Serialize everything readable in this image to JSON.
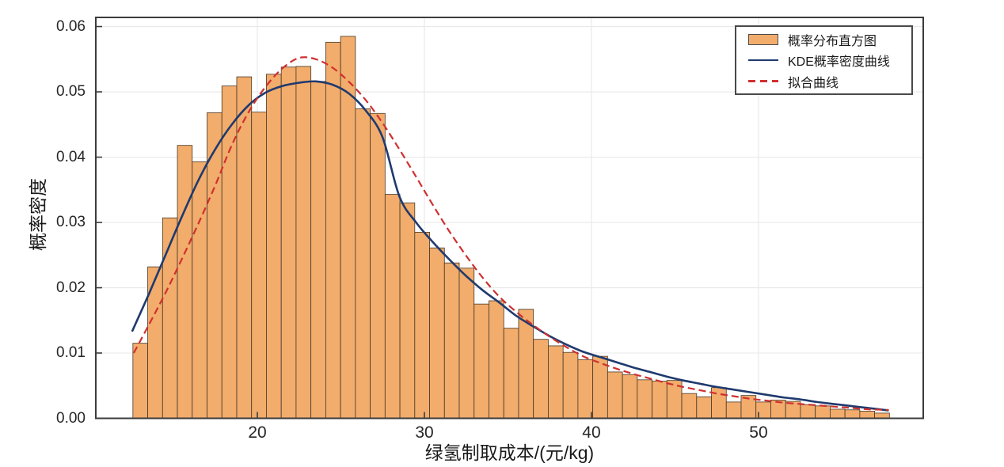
{
  "figure": {
    "xlabel": "绿氢制取成本/(元/kg)",
    "ylabel": "概率密度"
  },
  "legend": {
    "histogram_label": "概率分布直方图",
    "kde_label": "KDE概率密度曲线",
    "fit_label": "拟合曲线"
  },
  "colors": {
    "bar_fill": "#F2AC6B",
    "bar_edge": "#45392a",
    "kde_line": "#1F3A6E",
    "fit_line": "#CF3030",
    "grid": "#E8E8E8",
    "spine": "#3C3C3C",
    "tick_text": "#262626"
  },
  "chart_data": {
    "type": "bar",
    "subtype": "histogram-with-density-curves",
    "title": "",
    "xlabel": "绿氢制取成本/(元/kg)",
    "ylabel": "概率密度",
    "xlim": [
      10.33,
      59.86
    ],
    "ylim": [
      0,
      0.0614
    ],
    "x_ticks": [
      20,
      30,
      40,
      50
    ],
    "x_tick_labels": [
      "20",
      "30",
      "40",
      "50"
    ],
    "y_ticks": [
      0,
      0.01,
      0.02,
      0.03,
      0.04,
      0.05,
      0.06
    ],
    "y_tick_labels": [
      "0.00",
      "0.01",
      "0.02",
      "0.03",
      "0.04",
      "0.05",
      "0.06"
    ],
    "grid": true,
    "legend_position": "upper right",
    "histogram": {
      "label": "概率分布直方图",
      "bin_start": 12.55,
      "bin_width": 0.888,
      "densities": [
        0.0115,
        0.0232,
        0.0307,
        0.0418,
        0.0393,
        0.0468,
        0.0509,
        0.0523,
        0.0469,
        0.0527,
        0.0538,
        0.0539,
        0.0516,
        0.0576,
        0.0585,
        0.0474,
        0.0467,
        0.0343,
        0.033,
        0.0285,
        0.0261,
        0.0238,
        0.023,
        0.0175,
        0.018,
        0.0138,
        0.0167,
        0.0121,
        0.0111,
        0.0101,
        0.009,
        0.0095,
        0.0071,
        0.0067,
        0.0059,
        0.0057,
        0.0058,
        0.0038,
        0.0033,
        0.0047,
        0.0025,
        0.0035,
        0.0025,
        0.0028,
        0.0026,
        0.0021,
        0.0019,
        0.0014,
        0.0013,
        0.0011,
        0.0008
      ]
    },
    "series": [
      {
        "name": "KDE概率密度曲线",
        "style": "solid",
        "color": "#1F3A6E",
        "width": 2.6,
        "x": [
          12.5,
          13.5,
          14.5,
          15.5,
          16.5,
          17.5,
          18.5,
          19.5,
          20.5,
          21.5,
          22.5,
          23.5,
          24.5,
          25.5,
          26.5,
          27.5,
          28.5,
          29.5,
          30.5,
          31.5,
          32.5,
          33.5,
          34.5,
          35.5,
          36.5,
          37.5,
          38.5,
          39.5,
          40.5,
          41.5,
          42.5,
          43.5,
          44.5,
          45.5,
          46.5,
          47.5,
          48.5,
          49.5,
          50.5,
          51.5,
          52.5,
          53.5,
          54.5,
          55.5,
          56.5,
          57.5,
          57.8
        ],
        "y": [
          0.0133,
          0.019,
          0.025,
          0.031,
          0.0366,
          0.0413,
          0.0451,
          0.048,
          0.0499,
          0.0509,
          0.0514,
          0.0516,
          0.0511,
          0.0497,
          0.0471,
          0.043,
          0.034,
          0.03,
          0.027,
          0.0243,
          0.0218,
          0.0196,
          0.0177,
          0.0157,
          0.0141,
          0.0126,
          0.0113,
          0.0102,
          0.0094,
          0.0086,
          0.0078,
          0.0071,
          0.0064,
          0.0058,
          0.0053,
          0.0048,
          0.0044,
          0.004,
          0.0036,
          0.0032,
          0.0029,
          0.0025,
          0.0022,
          0.0019,
          0.0016,
          0.0013,
          0.0012
        ]
      },
      {
        "name": "拟合曲线",
        "style": "dashed",
        "color": "#CF3030",
        "width": 2.2,
        "dash": "9 5",
        "x": [
          12.6,
          13.5,
          14.5,
          15.5,
          16.5,
          17.5,
          18.5,
          19.5,
          20.5,
          21.5,
          22.5,
          23.5,
          24.5,
          25.5,
          26.5,
          27.5,
          28.5,
          29.5,
          30.5,
          31.5,
          32.5,
          33.5,
          34.5,
          35.5,
          36.5,
          37.5,
          38.5,
          39.5,
          40.5,
          41.5,
          42.5,
          43.5,
          44.5,
          45.5,
          46.5,
          47.5,
          48.5,
          49.5,
          50.5,
          51.5,
          52.5,
          53.5,
          54.5,
          55.5,
          56.5,
          57.5,
          57.8
        ],
        "y": [
          0.01,
          0.0143,
          0.0192,
          0.0245,
          0.03,
          0.0358,
          0.042,
          0.047,
          0.0508,
          0.0536,
          0.0552,
          0.055,
          0.0537,
          0.0515,
          0.0487,
          0.0452,
          0.0412,
          0.037,
          0.0327,
          0.0286,
          0.0249,
          0.0215,
          0.0186,
          0.0163,
          0.0143,
          0.0125,
          0.0109,
          0.0095,
          0.0085,
          0.0076,
          0.0068,
          0.0061,
          0.0054,
          0.0048,
          0.0043,
          0.0038,
          0.0034,
          0.003,
          0.0027,
          0.0024,
          0.0022,
          0.002,
          0.0018,
          0.0016,
          0.0014,
          0.0013,
          0.0013
        ]
      }
    ]
  }
}
